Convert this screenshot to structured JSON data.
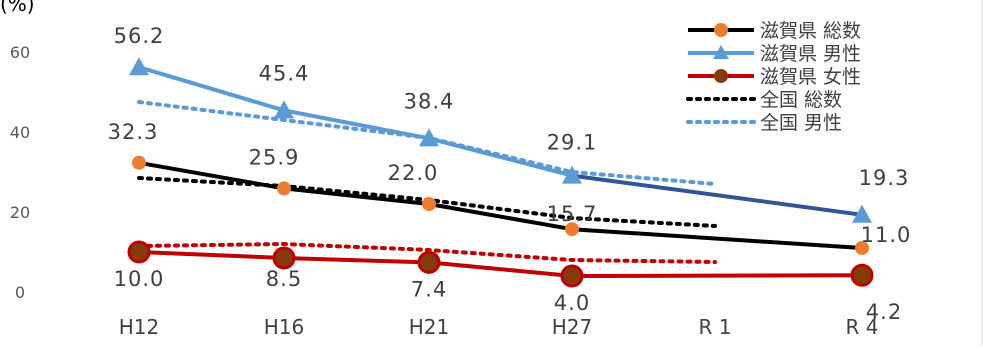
{
  "chart_data": {
    "type": "line",
    "title": "(%)",
    "categories": [
      "H12",
      "H16",
      "H21",
      "H27",
      "R 1",
      "R 4"
    ],
    "ylim": [
      0,
      60
    ],
    "yticks": [
      0,
      20,
      40,
      60
    ],
    "grid": false,
    "legend_position": "top-right",
    "series": [
      {
        "name": "滋賀県 総数",
        "values": [
          32.3,
          25.9,
          22.0,
          15.7,
          null,
          11.0
        ],
        "labels": [
          "32.3",
          "25.9",
          "22.0",
          "15.7",
          null,
          "11.0"
        ],
        "color": "#000000",
        "marker_color": "#ed7d31",
        "marker": "circle",
        "style": "solid"
      },
      {
        "name": "滋賀県 男性",
        "values": [
          56.2,
          45.4,
          38.4,
          29.1,
          null,
          19.3
        ],
        "labels": [
          "56.2",
          "45.4",
          "38.4",
          "29.1",
          null,
          "19.3"
        ],
        "color": "#5b9bd5",
        "segment_color_last": "#2f5597",
        "marker_color": "#5b9bd5",
        "marker": "triangle",
        "style": "solid"
      },
      {
        "name": "滋賀県 女性",
        "values": [
          10.0,
          8.5,
          7.4,
          4.0,
          null,
          4.2
        ],
        "labels": [
          "10.0",
          "8.5",
          "7.4",
          "4.0",
          null,
          "4.2"
        ],
        "color": "#c00000",
        "marker_color": "#843c0c",
        "marker": "circle",
        "style": "solid"
      },
      {
        "name": "全国 総数",
        "values": [
          28.5,
          26.5,
          23.0,
          18.5,
          16.5,
          null
        ],
        "color": "#000000",
        "style": "dotted"
      },
      {
        "name": "全国 男性",
        "values": [
          47.5,
          43.0,
          38.5,
          30.0,
          27.0,
          null
        ],
        "color": "#5b9bd5",
        "style": "dotted"
      },
      {
        "name": "全国 女性",
        "values": [
          11.5,
          12.0,
          10.5,
          8.0,
          7.5,
          null
        ],
        "color": "#c00000",
        "style": "dotted",
        "in_legend": false
      }
    ]
  }
}
